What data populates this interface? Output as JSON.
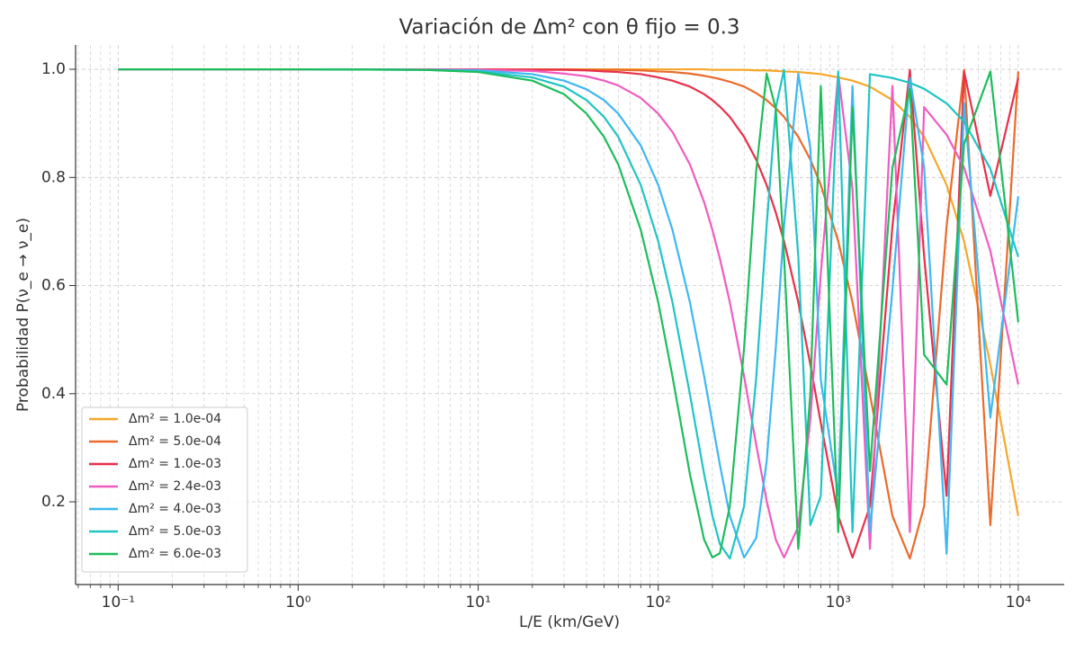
{
  "chart_data": {
    "type": "line",
    "title": "Variación de Δm² con θ fijo = 0.3",
    "x_label": "L/E (km/GeV)",
    "y_label": "Probabilidad P(ν_e → ν_e)",
    "xscale": "log",
    "grid": true,
    "legend": "lower left",
    "xlim": [
      0.058,
      18000
    ],
    "ylim": [
      0.047,
      1.045
    ],
    "xticks": [
      {
        "value": 0.1,
        "label": "10⁻¹"
      },
      {
        "value": 1,
        "label": "10⁰"
      },
      {
        "value": 10,
        "label": "10¹"
      },
      {
        "value": 100,
        "label": "10²"
      },
      {
        "value": 1000,
        "label": "10³"
      },
      {
        "value": 10000,
        "label": "10⁴"
      }
    ],
    "yticks": [
      0.2,
      0.4,
      0.6,
      0.8,
      {
        "value": 1,
        "label": "1.0"
      }
    ],
    "x": [
      0.1,
      1,
      5,
      10,
      20,
      30,
      40,
      50,
      60,
      80,
      100,
      120,
      150,
      180,
      200,
      220,
      250,
      300,
      350,
      400,
      450,
      500,
      600,
      700,
      800,
      1000,
      1200,
      1500,
      2000,
      2500,
      3000,
      4000,
      5000,
      7000,
      10000
    ],
    "series": [
      {
        "name": "Δm² = 1.0e-04",
        "color": "#f5a82a",
        "values": [
          1,
          1,
          1,
          1,
          1,
          1,
          1,
          1,
          1,
          1,
          1,
          1,
          1,
          1,
          0.999,
          0.999,
          0.999,
          0.999,
          0.998,
          0.998,
          0.997,
          0.996,
          0.995,
          0.993,
          0.991,
          0.985,
          0.979,
          0.968,
          0.943,
          0.912,
          0.875,
          0.786,
          0.682,
          0.454,
          0.174
        ]
      },
      {
        "name": "Δm² = 5.0e-04",
        "color": "#ea6b2a",
        "values": [
          1,
          1,
          1,
          1,
          1,
          1,
          0.999,
          0.999,
          0.999,
          0.998,
          0.996,
          0.995,
          0.992,
          0.988,
          0.985,
          0.982,
          0.977,
          0.968,
          0.956,
          0.943,
          0.928,
          0.912,
          0.875,
          0.833,
          0.786,
          0.682,
          0.569,
          0.399,
          0.174,
          0.095,
          0.192,
          0.71,
          0.999,
          0.157,
          0.996
        ]
      },
      {
        "name": "Δm² = 1.0e-03",
        "color": "#e8304a",
        "values": [
          1,
          1,
          1,
          1,
          0.999,
          0.999,
          0.998,
          0.996,
          0.995,
          0.991,
          0.985,
          0.979,
          0.968,
          0.954,
          0.943,
          0.931,
          0.912,
          0.875,
          0.833,
          0.786,
          0.735,
          0.682,
          0.569,
          0.454,
          0.346,
          0.174,
          0.097,
          0.192,
          0.71,
          0.999,
          0.654,
          0.211,
          0.996,
          0.766,
          0.984
        ]
      },
      {
        "name": "Δm² = 2.4e-03",
        "color": "#f05cc0",
        "values": [
          1,
          1,
          1,
          0.999,
          0.997,
          0.992,
          0.987,
          0.979,
          0.97,
          0.947,
          0.918,
          0.884,
          0.824,
          0.754,
          0.703,
          0.65,
          0.569,
          0.432,
          0.306,
          0.202,
          0.13,
          0.097,
          0.154,
          0.353,
          0.622,
          0.992,
          0.779,
          0.113,
          0.969,
          0.144,
          0.93,
          0.879,
          0.818,
          0.664,
          0.417
        ]
      },
      {
        "name": "Δm² = 4.0e-03",
        "color": "#3db8f0",
        "values": [
          1,
          1,
          0.999,
          0.998,
          0.991,
          0.979,
          0.963,
          0.943,
          0.918,
          0.859,
          0.786,
          0.703,
          0.569,
          0.432,
          0.346,
          0.269,
          0.174,
          0.097,
          0.133,
          0.274,
          0.485,
          0.71,
          0.992,
          0.854,
          0.426,
          0.211,
          0.969,
          0.144,
          0.592,
          0.984,
          0.818,
          0.104,
          0.937,
          0.356,
          0.765
        ]
      },
      {
        "name": "Δm² = 5.0e-03",
        "color": "#20c4c4",
        "values": [
          1,
          1,
          0.999,
          0.996,
          0.985,
          0.968,
          0.943,
          0.912,
          0.875,
          0.786,
          0.682,
          0.569,
          0.399,
          0.251,
          0.174,
          0.122,
          0.095,
          0.192,
          0.428,
          0.71,
          0.929,
          0.999,
          0.654,
          0.157,
          0.211,
          0.996,
          0.144,
          0.991,
          0.984,
          0.975,
          0.964,
          0.937,
          0.903,
          0.816,
          0.653
        ]
      },
      {
        "name": "Δm² = 6.0e-03",
        "color": "#1dbd5c",
        "values": [
          1,
          1,
          0.999,
          0.995,
          0.979,
          0.954,
          0.918,
          0.875,
          0.824,
          0.703,
          0.569,
          0.432,
          0.251,
          0.13,
          0.097,
          0.105,
          0.192,
          0.485,
          0.811,
          0.992,
          0.927,
          0.654,
          0.113,
          0.401,
          0.969,
          0.144,
          0.93,
          0.257,
          0.818,
          0.964,
          0.472,
          0.417,
          0.862,
          0.996,
          0.532
        ]
      }
    ]
  }
}
